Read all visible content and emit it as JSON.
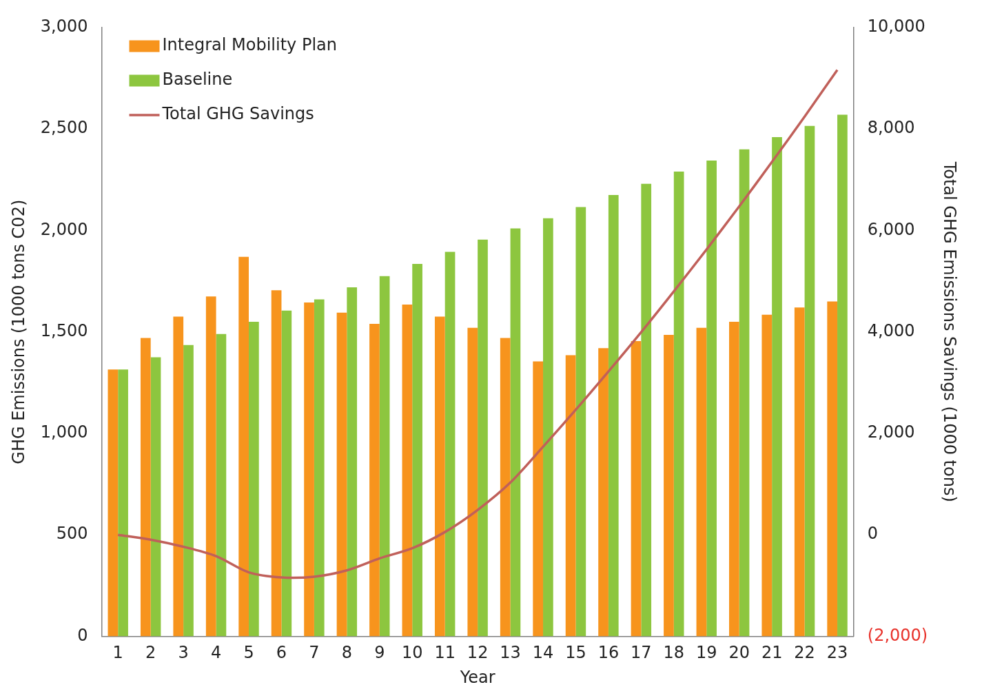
{
  "chart_data": {
    "type": "bar",
    "x_label": "Year",
    "y_label": "GHG Emissions (1000 tons C02)",
    "y2_label": "Total GHG Emissions Savings (1000 tons)",
    "categories": [
      "1",
      "2",
      "3",
      "4",
      "5",
      "6",
      "7",
      "8",
      "9",
      "10",
      "11",
      "12",
      "13",
      "14",
      "15",
      "16",
      "17",
      "18",
      "19",
      "20",
      "21",
      "22",
      "23"
    ],
    "series": [
      {
        "name": "Integral Mobility Plan",
        "color": "#f7941d",
        "type": "bar",
        "values": [
          1315,
          1470,
          1575,
          1675,
          1870,
          1705,
          1645,
          1595,
          1540,
          1635,
          1575,
          1520,
          1470,
          1355,
          1385,
          1420,
          1455,
          1485,
          1520,
          1550,
          1585,
          1620,
          1650
        ]
      },
      {
        "name": "Baseline",
        "color": "#8dc63f",
        "type": "bar",
        "values": [
          1315,
          1375,
          1435,
          1490,
          1550,
          1605,
          1660,
          1720,
          1775,
          1835,
          1895,
          1955,
          2010,
          2060,
          2115,
          2175,
          2230,
          2290,
          2345,
          2400,
          2460,
          2515,
          2570
        ]
      },
      {
        "name": "Total GHG Savings",
        "color": "#c0605a",
        "type": "line",
        "axis": "y2",
        "values": [
          0,
          -95,
          -235,
          -420,
          -740,
          -840,
          -825,
          -700,
          -465,
          -265,
          55,
          490,
          1030,
          1735,
          2465,
          3220,
          3995,
          4800,
          5625,
          6475,
          7350,
          8245,
          9165
        ]
      }
    ],
    "ylim": [
      0,
      3000
    ],
    "yticks": [
      0,
      500,
      {
        "value": 1000,
        "label": "1,000"
      },
      {
        "value": 1500,
        "label": "1,500"
      },
      {
        "value": 2000,
        "label": "2,000"
      },
      {
        "value": 2500,
        "label": "2,500"
      },
      {
        "value": 3000,
        "label": "3,000"
      }
    ],
    "y2lim": [
      -2000,
      10000
    ],
    "y2ticks": [
      {
        "value": -2000,
        "label": "(2,000)"
      },
      0,
      {
        "value": 2000,
        "label": "2,000"
      },
      {
        "value": 4000,
        "label": "4,000"
      },
      {
        "value": 6000,
        "label": "6,000"
      },
      {
        "value": 8000,
        "label": "8,000"
      },
      {
        "value": 10000,
        "label": "10,000"
      }
    ],
    "grid": false,
    "legend": "upper left"
  }
}
